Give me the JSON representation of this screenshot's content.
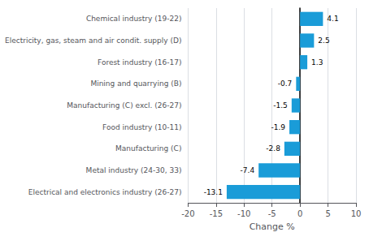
{
  "chart_data": {
    "type": "bar",
    "orientation": "horizontal",
    "categories": [
      "Chemical industry (19-22)",
      "Electricity, gas, steam and air condit. supply (D)",
      "Forest industry (16-17)",
      "Mining and quarrying (B)",
      "Manufacturing (C) excl. (26-27)",
      "Food industry (10-11)",
      "Manufacturing (C)",
      "Metal industry (24-30, 33)",
      "Electrical and electronics industry (26-27)"
    ],
    "values": [
      4.1,
      2.5,
      1.3,
      -0.7,
      -1.5,
      -1.9,
      -2.8,
      -7.4,
      -13.1
    ],
    "color": "#1a9cd8",
    "xlabel": "Change %",
    "xlim": [
      -20,
      10
    ],
    "xticks": [
      -20,
      -15,
      -10,
      -5,
      0,
      5,
      10
    ],
    "grid": true,
    "data_labels": true
  }
}
